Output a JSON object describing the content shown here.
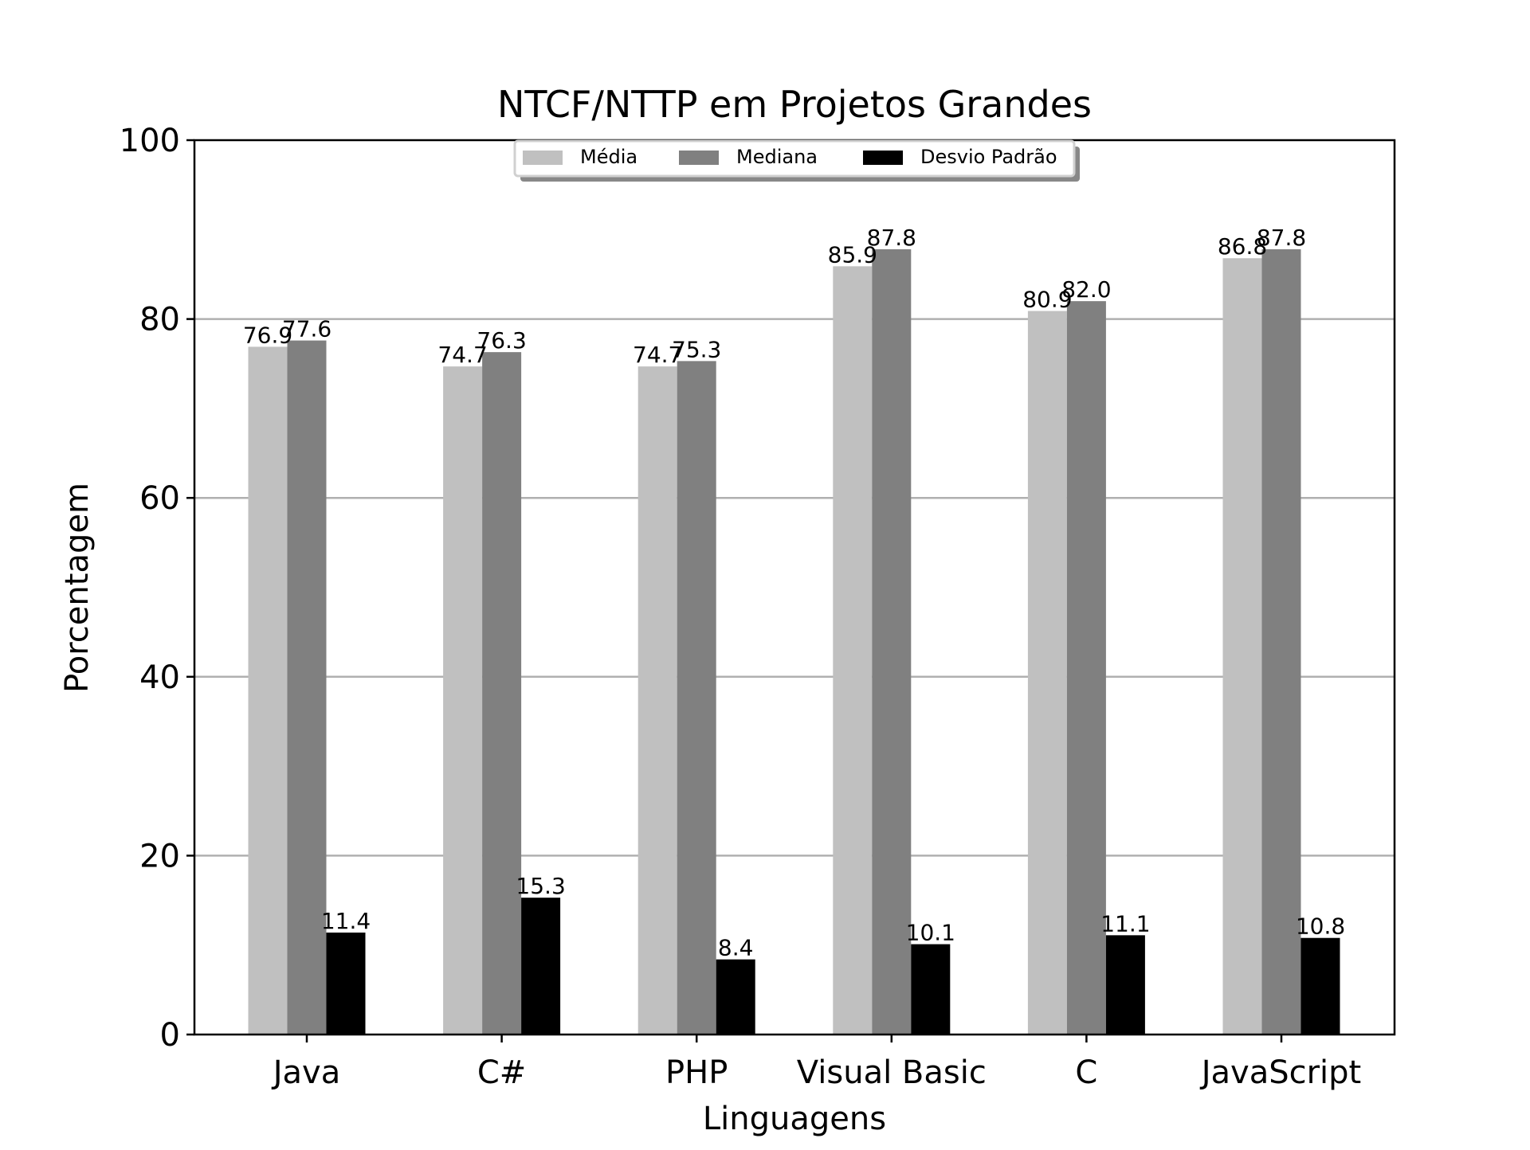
{
  "chart_data": {
    "type": "bar",
    "title": "NTCF/NTTP em Projetos Grandes",
    "xlabel": "Linguagens",
    "ylabel": "Porcentagem",
    "ylim": [
      0,
      100
    ],
    "yticks": [
      0,
      20,
      40,
      60,
      80,
      100
    ],
    "grid": "horizontal",
    "legend_position": "top-center",
    "categories": [
      "Java",
      "C#",
      "PHP",
      "Visual Basic",
      "C",
      "JavaScript"
    ],
    "series": [
      {
        "name": "Média",
        "color": "#c0c0c0",
        "values": [
          76.9,
          74.7,
          74.7,
          85.9,
          80.9,
          86.8
        ],
        "labels": [
          "76.9",
          "74.7",
          "74.7",
          "85.9",
          "80.9",
          "86.8"
        ]
      },
      {
        "name": "Mediana",
        "color": "#808080",
        "values": [
          77.6,
          76.3,
          75.3,
          87.8,
          82.0,
          87.8
        ],
        "labels": [
          "77.6",
          "76.3",
          "75.3",
          "87.8",
          "82.0",
          "87.8"
        ]
      },
      {
        "name": "Desvio Padrão",
        "color": "#000000",
        "values": [
          11.4,
          15.3,
          8.4,
          10.1,
          11.1,
          10.8
        ],
        "labels": [
          "11.4",
          "15.3",
          "8.4",
          "10.1",
          "11.1",
          "10.8"
        ]
      }
    ]
  }
}
